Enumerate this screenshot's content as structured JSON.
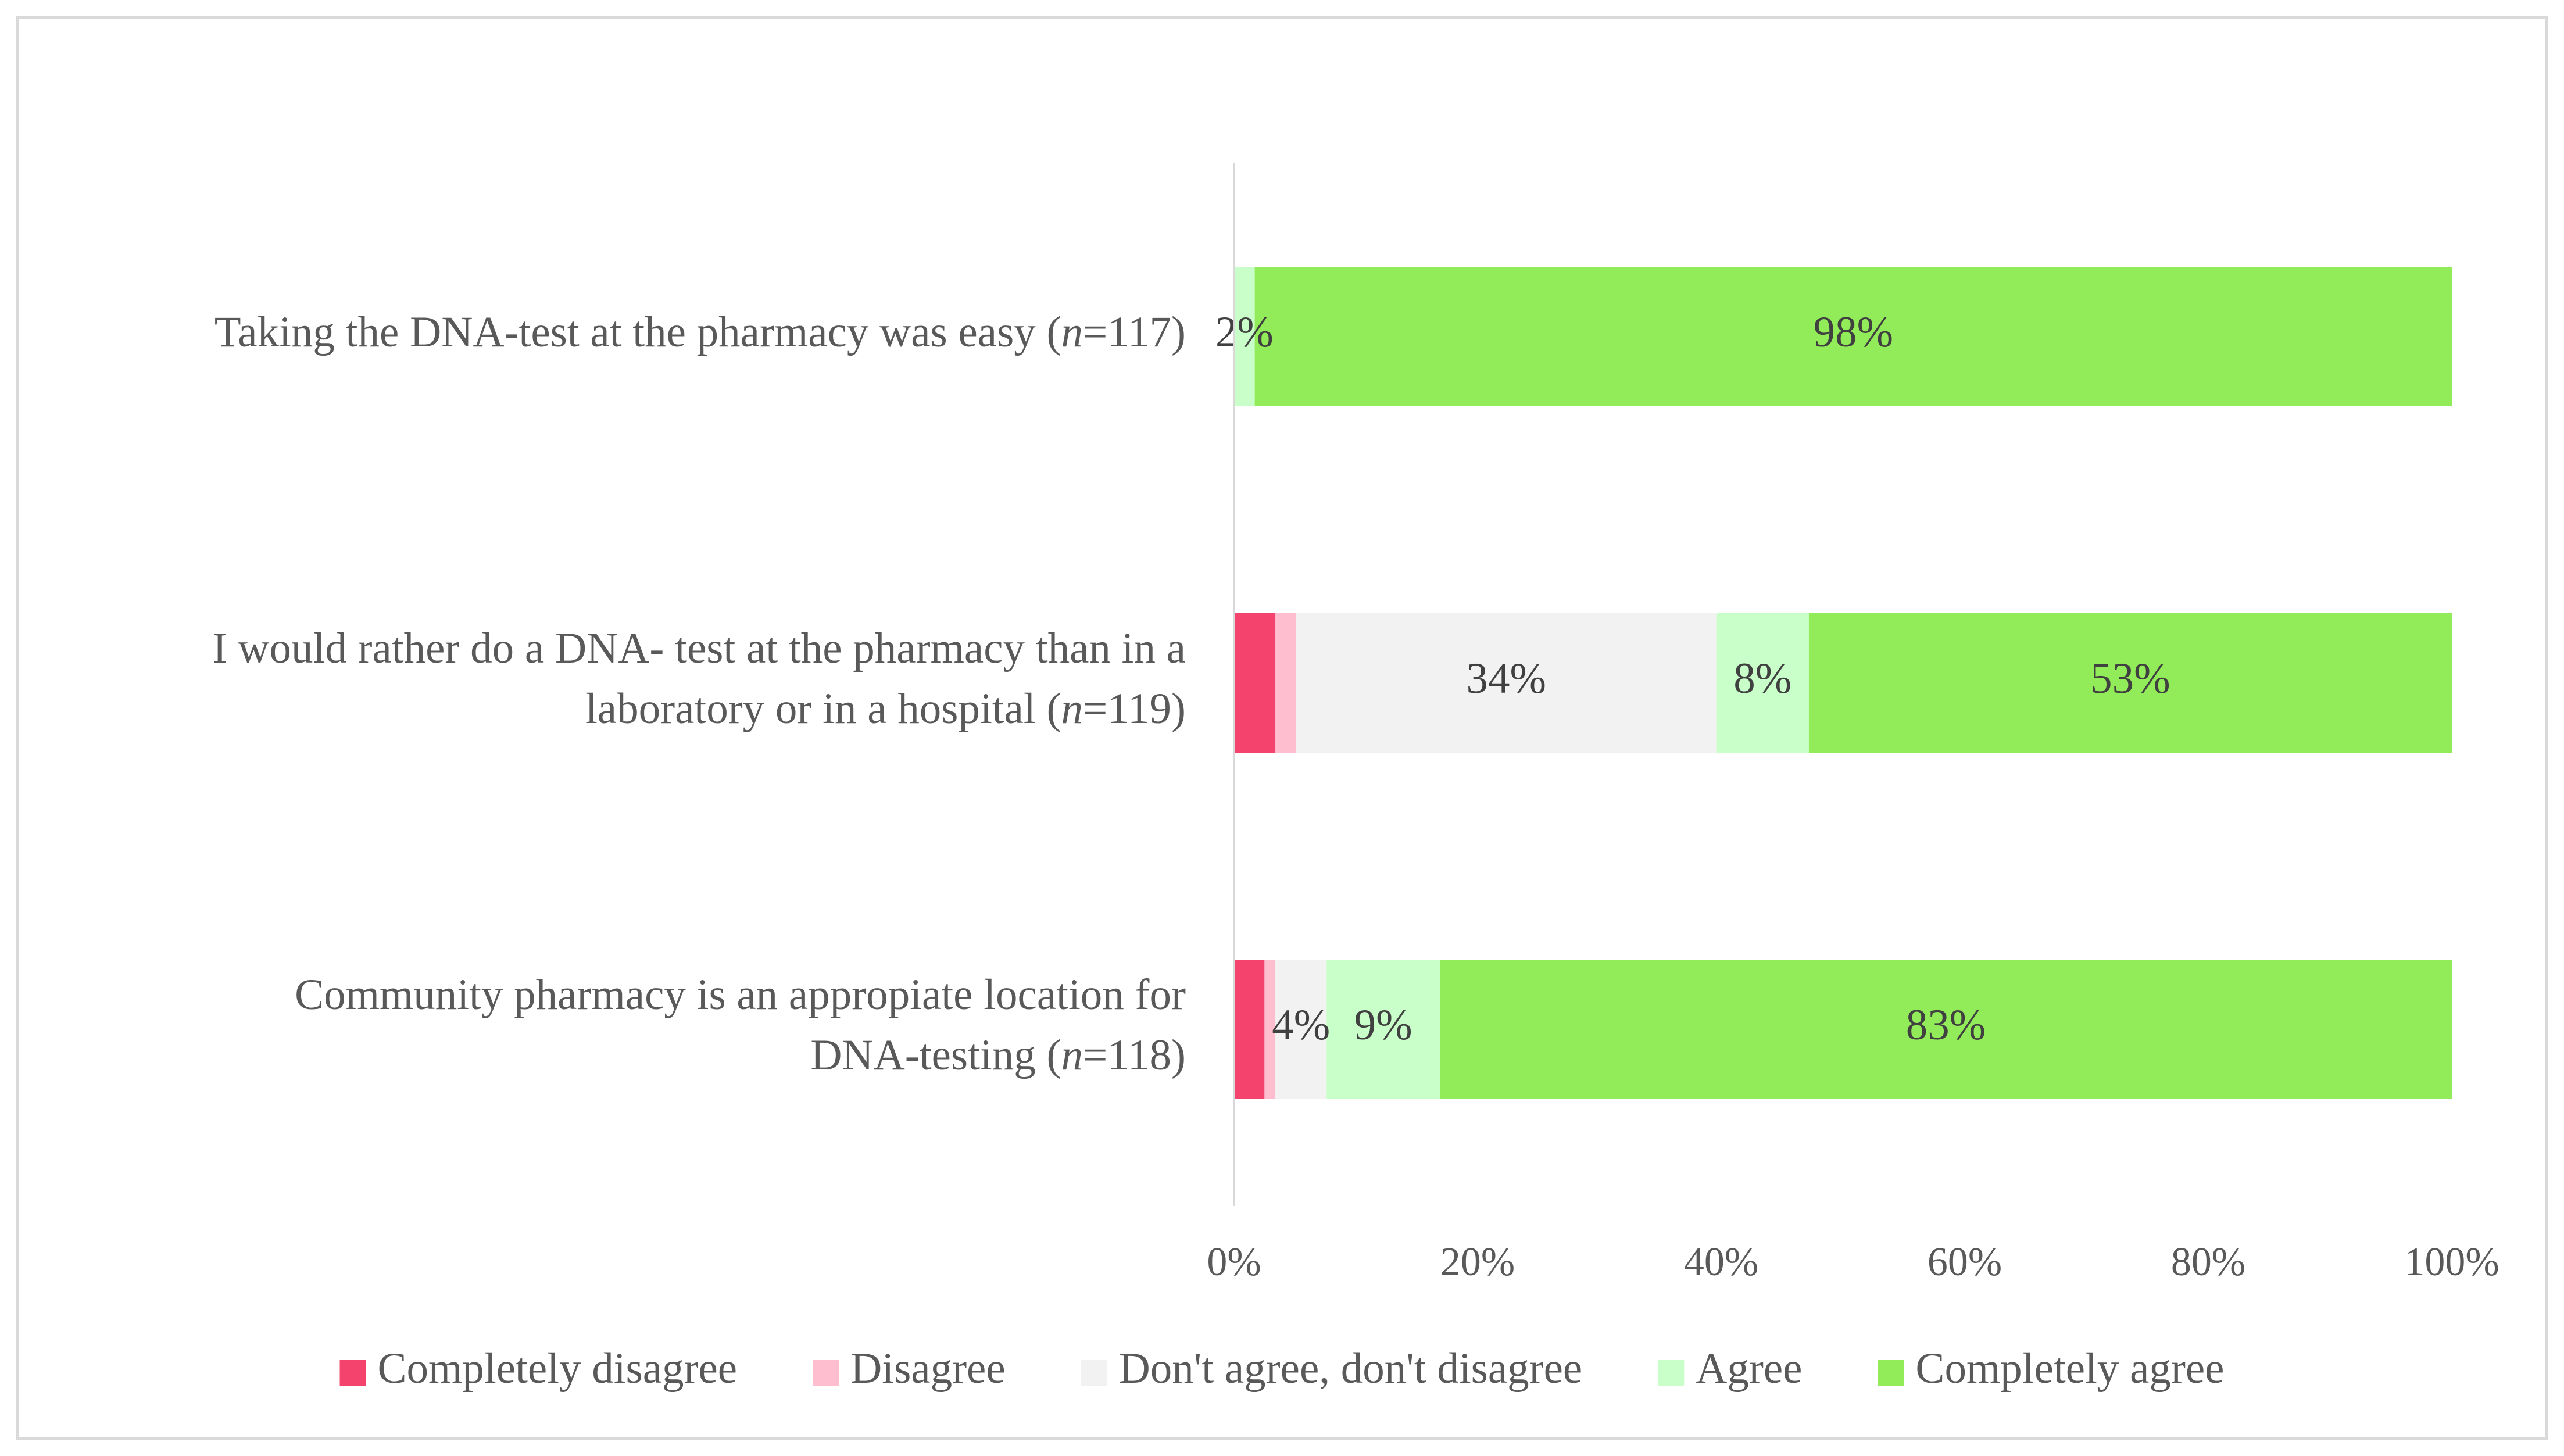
{
  "chart_data": {
    "type": "bar",
    "orientation": "horizontal",
    "stacked": true,
    "percent_stacked": true,
    "categories": [
      [
        "Taking the DNA-test at the pharmacy was easy (",
        "n",
        "=117)"
      ],
      [
        "I would rather do a DNA- test at the pharmacy than in a",
        "laboratory or in a hospital (",
        "n",
        "=119)"
      ],
      [
        "Community pharmacy is an appropiate location for",
        "DNA-testing (",
        "n",
        "=118)"
      ]
    ],
    "series": [
      {
        "name": "Completely disagree",
        "color": "#f4436c",
        "values": [
          0,
          3.4,
          2.5
        ],
        "labels": [
          "",
          "",
          ""
        ]
      },
      {
        "name": "Disagree",
        "color": "#ffbdd0",
        "values": [
          0,
          1.7,
          0.9
        ],
        "labels": [
          "",
          "",
          ""
        ]
      },
      {
        "name": "Don't agree, don't disagree",
        "color": "#f2f2f2",
        "values": [
          0,
          34.5,
          4.2
        ],
        "labels": [
          "",
          "34%",
          "4%"
        ]
      },
      {
        "name": "Agree",
        "color": "#c9ffc8",
        "values": [
          1.7,
          7.6,
          9.3
        ],
        "labels": [
          "2%",
          "8%",
          "9%"
        ]
      },
      {
        "name": "Completely agree",
        "color": "#92eb59",
        "values": [
          98.3,
          52.8,
          83.1
        ],
        "labels": [
          "98%",
          "53%",
          "83%"
        ]
      }
    ],
    "xlim": [
      0,
      100
    ],
    "xticks": [
      "0%",
      "20%",
      "40%",
      "60%",
      "80%",
      "100%"
    ],
    "grid": false,
    "legend": "bottom"
  }
}
